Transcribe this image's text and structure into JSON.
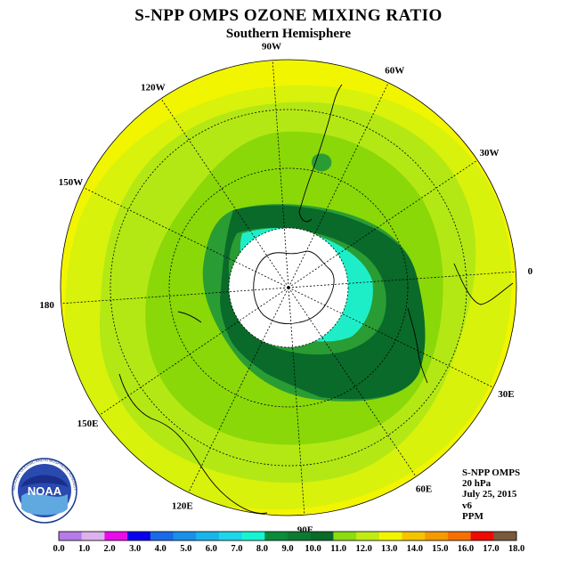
{
  "title": "S-NPP OMPS OZONE MIXING RATIO",
  "subtitle": "Southern Hemisphere",
  "info": {
    "instrument": "S-NPP OMPS",
    "level": "20 hPa",
    "date": "July 25, 2015",
    "version": "v6",
    "units": "PPM"
  },
  "logo": {
    "name": "noaa-logo",
    "text": "NOAA",
    "ring_text": "NATIONAL OCEANIC AND ATMOSPHERIC ADMINISTRATION · U.S. DEPARTMENT OF COMMERCE"
  },
  "longitude_labels": [
    {
      "text": "0",
      "lon": 0
    },
    {
      "text": "30E",
      "lon": 30
    },
    {
      "text": "60E",
      "lon": 60
    },
    {
      "text": "90E",
      "lon": 90
    },
    {
      "text": "120E",
      "lon": 120
    },
    {
      "text": "150E",
      "lon": 150
    },
    {
      "text": "180",
      "lon": 180
    },
    {
      "text": "150W",
      "lon": -150
    },
    {
      "text": "120W",
      "lon": -120
    },
    {
      "text": "90W",
      "lon": -90
    },
    {
      "text": "60W",
      "lon": -60
    },
    {
      "text": "30W",
      "lon": -30
    }
  ],
  "colorbar": {
    "labels": [
      "0.0",
      "1.0",
      "2.0",
      "3.0",
      "4.0",
      "5.0",
      "6.0",
      "7.0",
      "8.0",
      "9.0",
      "10.0",
      "11.0",
      "12.0",
      "13.0",
      "14.0",
      "15.0",
      "16.0",
      "17.0",
      "18.0"
    ],
    "colors": [
      "#b77be8",
      "#dcb2ec",
      "#e80ce8",
      "#0a00ec",
      "#1a6ae8",
      "#1a90e8",
      "#18b4ea",
      "#1ed6ea",
      "#16f4d2",
      "#0a8c3a",
      "#0c7a30",
      "#0a6a2a",
      "#8cdc10",
      "#c0ec14",
      "#f2f500",
      "#f5c400",
      "#f59a00",
      "#f57000",
      "#ee0c00",
      "#7a5a3c"
    ]
  },
  "colors": {
    "outer_ring": "#f2f500",
    "band_12_13": "#d8f20c",
    "band_11_12": "#b4e814",
    "band_10_11": "#8ad808",
    "band_9_10": "#2a9c34",
    "band_8_9": "#0a6a2a",
    "band_7_8": "#1eeec8",
    "polar_mask": "#ffffff",
    "lines": "#000000"
  }
}
